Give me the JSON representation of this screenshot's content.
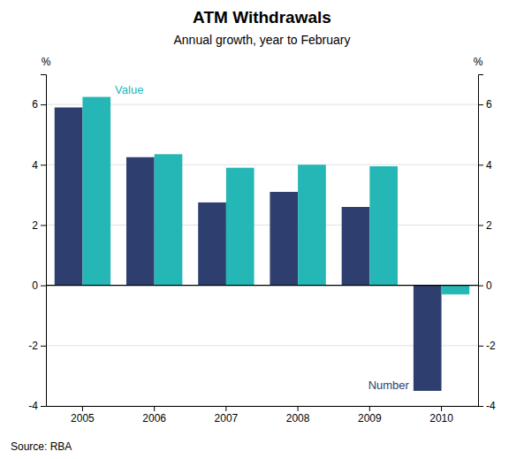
{
  "chart_data": {
    "type": "bar",
    "title": "ATM Withdrawals",
    "subtitle": "Annual growth, year to February",
    "source": "Source: RBA",
    "y_label": "%",
    "y2_label": "%",
    "categories": [
      "2005",
      "2006",
      "2007",
      "2008",
      "2009",
      "2010"
    ],
    "series": [
      {
        "name": "Number",
        "color": "#2E3F6F",
        "values": [
          5.9,
          4.25,
          2.75,
          3.1,
          2.6,
          -3.5
        ]
      },
      {
        "name": "Value",
        "color": "#25B6B6",
        "values": [
          6.25,
          4.35,
          3.9,
          4.0,
          3.95,
          -0.3
        ]
      }
    ],
    "ylim": [
      -4,
      7
    ],
    "yticks": [
      -4,
      -2,
      0,
      2,
      4,
      6
    ],
    "y2lim": [
      -4,
      7
    ],
    "y2ticks": [
      -4,
      -2,
      0,
      2,
      4,
      6
    ],
    "grid": true
  }
}
